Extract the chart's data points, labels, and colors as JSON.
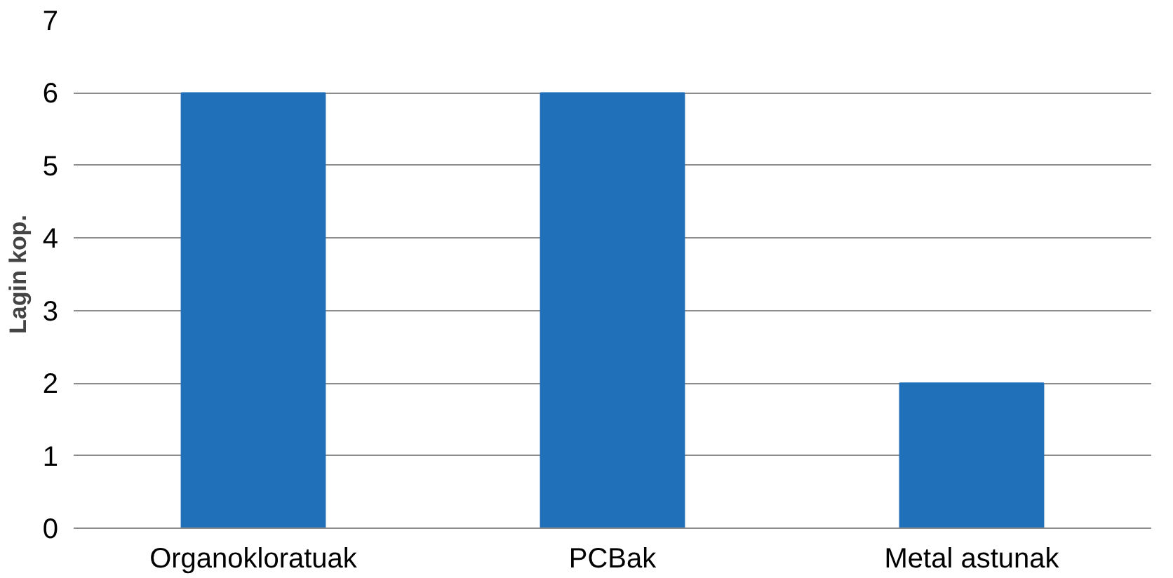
{
  "chart_data": {
    "type": "bar",
    "ylabel": "Lagin kop.",
    "categories": [
      "Organokloratuak",
      "PCBak",
      "Metal astunak"
    ],
    "values": [
      6,
      6,
      2
    ],
    "color": "#1f6fb9",
    "ylim": [
      0,
      7
    ],
    "yticks": [
      0,
      1,
      2,
      3,
      4,
      5,
      6,
      7
    ],
    "grid": "y"
  }
}
